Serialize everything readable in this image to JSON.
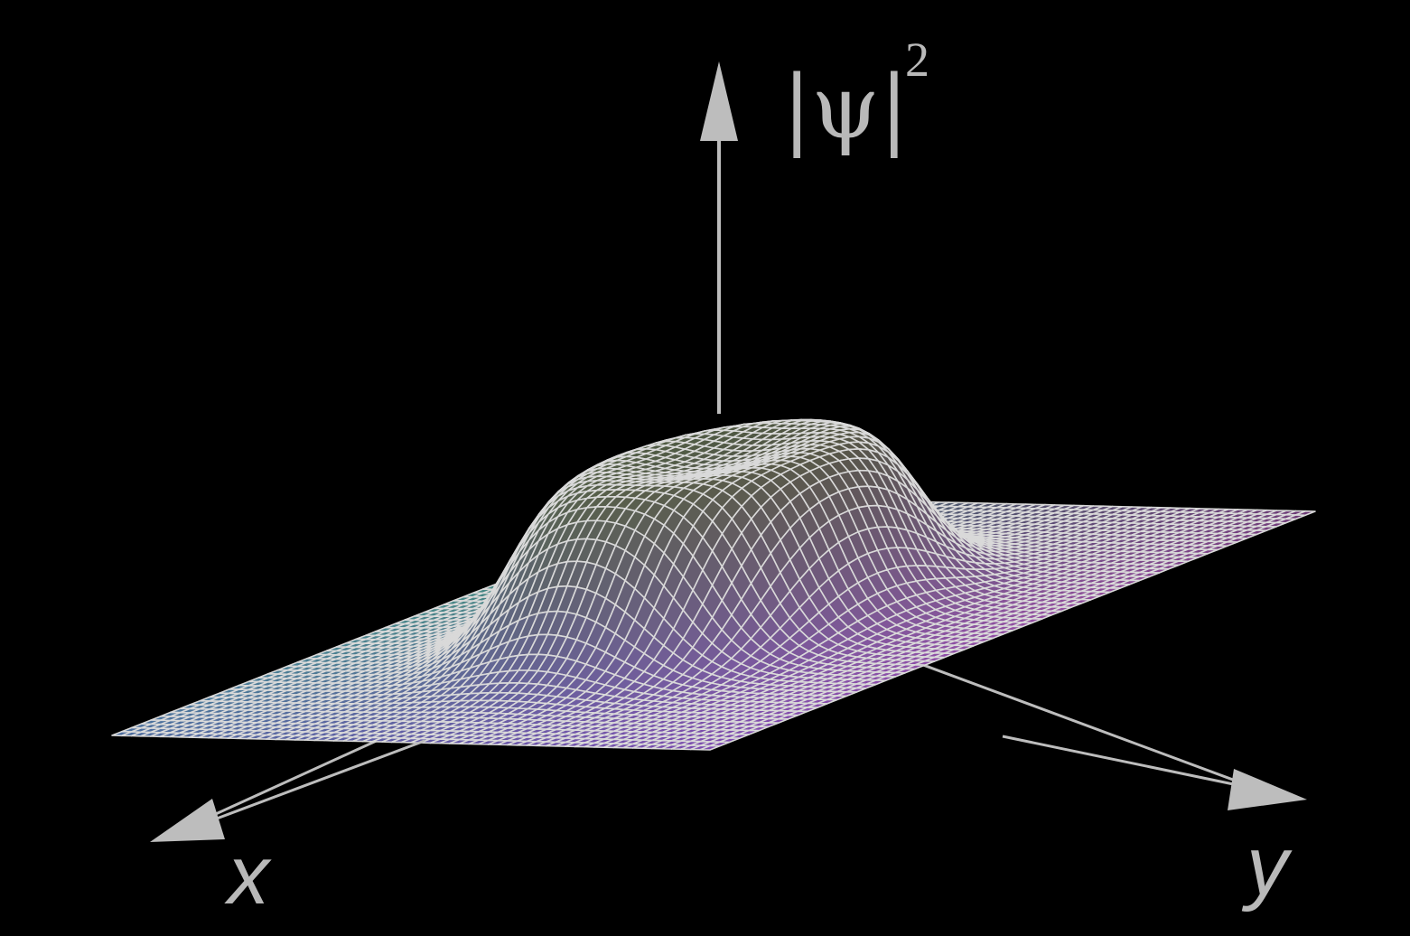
{
  "labels": {
    "z_axis": "|ψ|",
    "z_axis_power": "2",
    "x_axis": "x",
    "y_axis": "y"
  },
  "colors": {
    "background": "#000000",
    "mesh_lines": "#d9d9d9",
    "axes": "#bdbdbd",
    "surface_left": "#5fb9b4",
    "surface_right": "#c86ad8",
    "surface_top": "#5c6a2a",
    "surface_front": "#3b2f8c"
  }
}
